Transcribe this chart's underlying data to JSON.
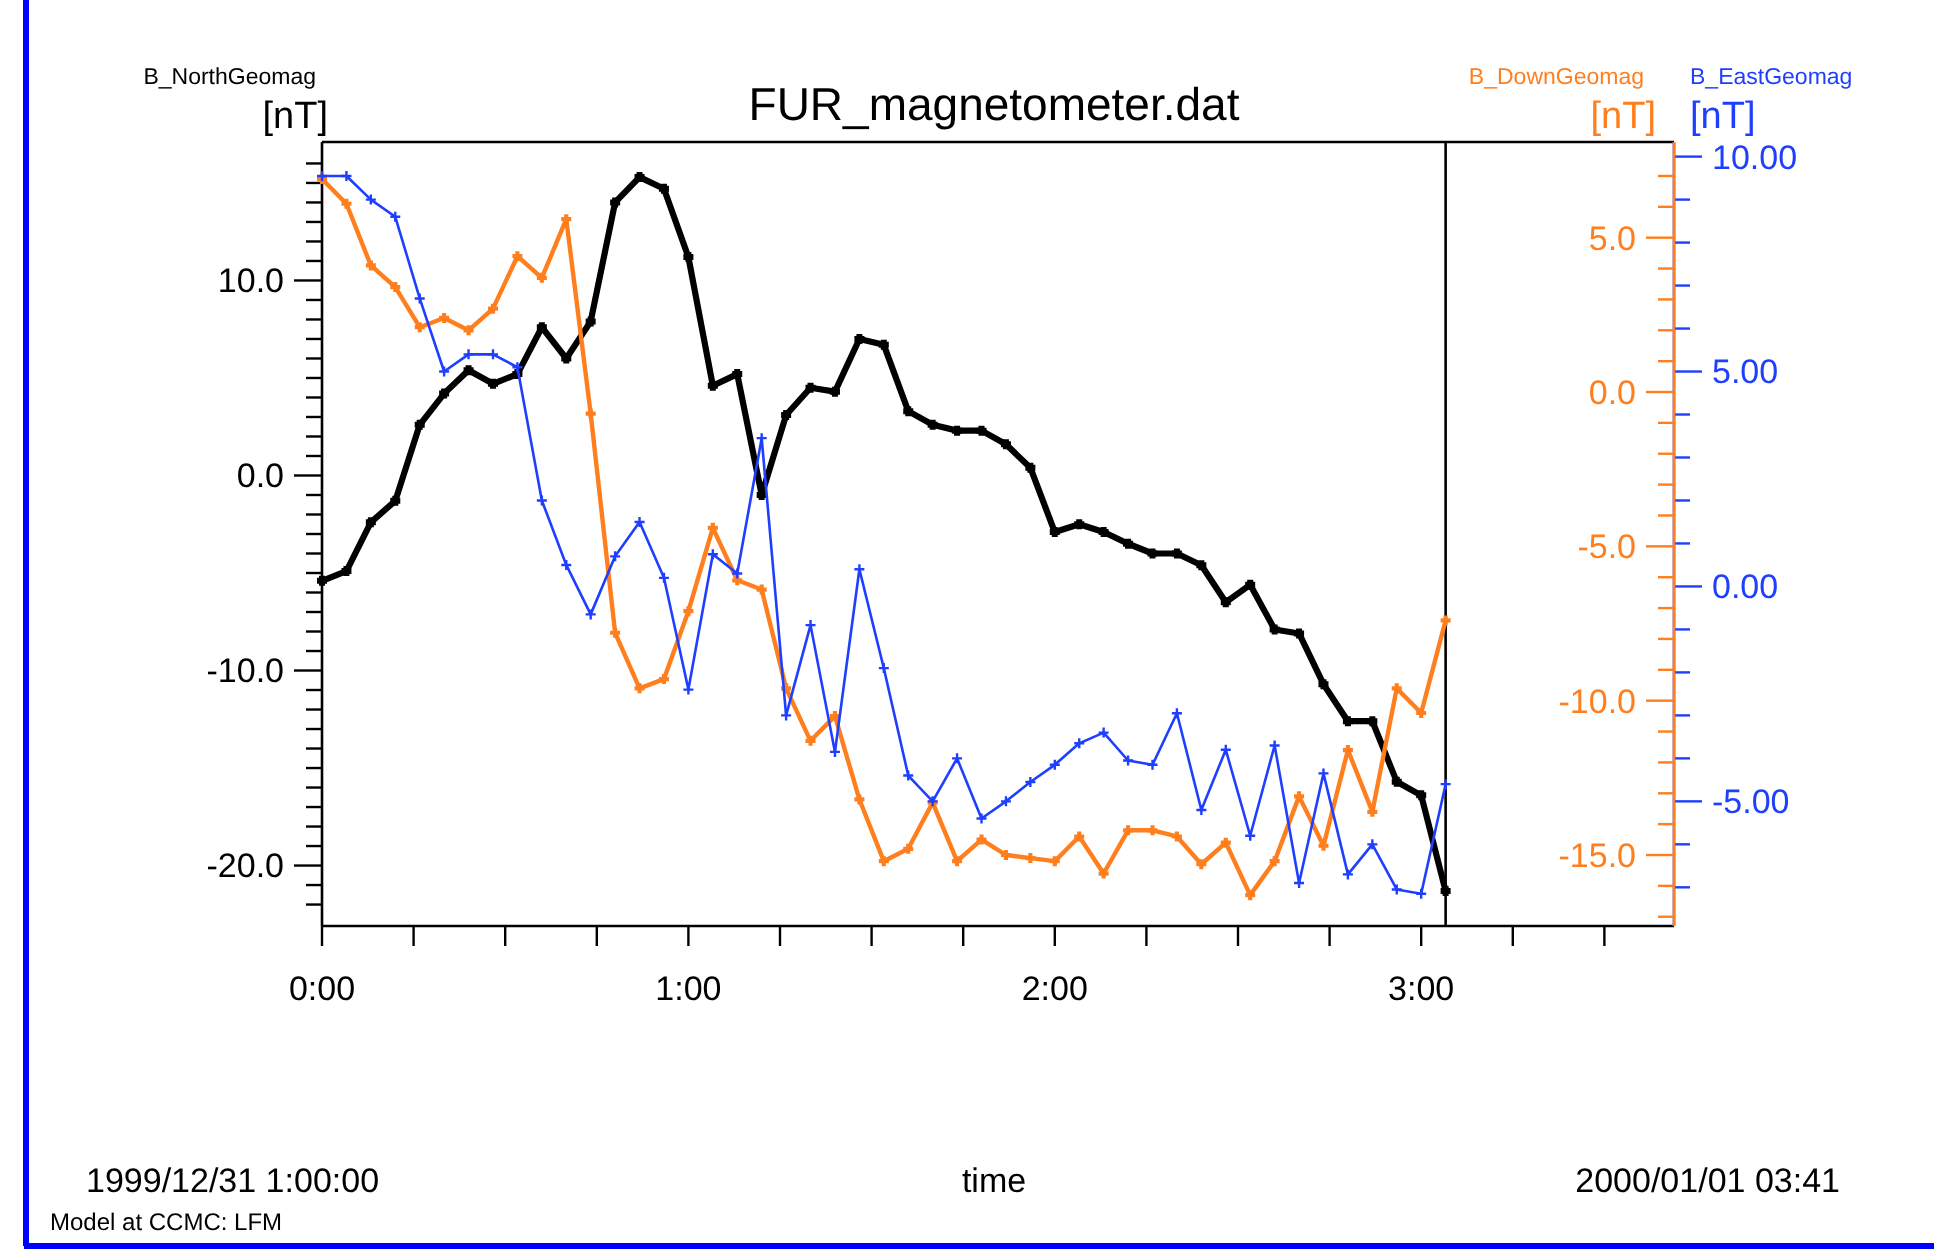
{
  "chart_data": {
    "type": "line",
    "title": "FUR_magnetometer.dat",
    "xlabel": "time",
    "ylabel": "B_NorthGeomag [nT]",
    "y2label": "B_DownGeomag [nT]",
    "y3label": "B_EastGeomag [nT]",
    "annotations": [
      "1999/12/31 1:00:00",
      "2000/01/01 03:41",
      "Model at CCMC: LFM"
    ],
    "marker": "cross",
    "line_style": "solid",
    "x": [
      0,
      0.0667,
      0.1333,
      0.2,
      0.2667,
      0.3333,
      0.4,
      0.4667,
      0.5333,
      0.6,
      0.6667,
      0.7333,
      0.8,
      0.8667,
      0.9333,
      1,
      1.0667,
      1.1333,
      1.2,
      1.2667,
      1.3333,
      1.4,
      1.4667,
      1.5333,
      1.6,
      1.6667,
      1.7333,
      1.8,
      1.8667,
      1.9333,
      2,
      2.0667,
      2.1333,
      2.2,
      2.2667,
      2.3333,
      2.4,
      2.4667,
      2.5333,
      2.6,
      2.6667,
      2.7333,
      2.8,
      2.8667,
      2.9333,
      3,
      3.0667
    ],
    "xlim": [
      0,
      3.69
    ],
    "xticks": [
      {
        "value": 0,
        "label": "0:00"
      },
      {
        "value": 0.25,
        "label": null
      },
      {
        "value": 0.5,
        "label": null
      },
      {
        "value": 0.75,
        "label": null
      },
      {
        "value": 1,
        "label": "1:00"
      },
      {
        "value": 1.25,
        "label": null
      },
      {
        "value": 1.5,
        "label": null
      },
      {
        "value": 1.75,
        "label": null
      },
      {
        "value": 2,
        "label": "2:00"
      },
      {
        "value": 2.25,
        "label": null
      },
      {
        "value": 2.5,
        "label": null
      },
      {
        "value": 2.75,
        "label": null
      },
      {
        "value": 3,
        "label": "3:00"
      },
      {
        "value": 3.25,
        "label": null
      },
      {
        "value": 3.5,
        "label": null
      }
    ],
    "ylim": [
      -23.1,
      17.1
    ],
    "yticks": [
      {
        "value": -22,
        "label": null
      },
      {
        "value": -21,
        "label": null
      },
      {
        "value": -20,
        "label": "-20.0"
      },
      {
        "value": -19,
        "label": null
      },
      {
        "value": -18,
        "label": null
      },
      {
        "value": -17,
        "label": null
      },
      {
        "value": -16,
        "label": null
      },
      {
        "value": -15,
        "label": null
      },
      {
        "value": -14,
        "label": null
      },
      {
        "value": -13,
        "label": null
      },
      {
        "value": -12,
        "label": null
      },
      {
        "value": -11,
        "label": null
      },
      {
        "value": -10,
        "label": "-10.0"
      },
      {
        "value": -9,
        "label": null
      },
      {
        "value": -8,
        "label": null
      },
      {
        "value": -7,
        "label": null
      },
      {
        "value": -6,
        "label": null
      },
      {
        "value": -5,
        "label": null
      },
      {
        "value": -4,
        "label": null
      },
      {
        "value": -3,
        "label": null
      },
      {
        "value": -2,
        "label": null
      },
      {
        "value": -1,
        "label": null
      },
      {
        "value": 0,
        "label": "0.0"
      },
      {
        "value": 1,
        "label": null
      },
      {
        "value": 2,
        "label": null
      },
      {
        "value": 3,
        "label": null
      },
      {
        "value": 4,
        "label": null
      },
      {
        "value": 5,
        "label": null
      },
      {
        "value": 6,
        "label": null
      },
      {
        "value": 7,
        "label": null
      },
      {
        "value": 8,
        "label": null
      },
      {
        "value": 9,
        "label": null
      },
      {
        "value": 10,
        "label": "10.0"
      },
      {
        "value": 11,
        "label": null
      },
      {
        "value": 12,
        "label": null
      },
      {
        "value": 13,
        "label": null
      },
      {
        "value": 14,
        "label": null
      },
      {
        "value": 15,
        "label": null
      },
      {
        "value": 16,
        "label": null
      }
    ],
    "y2lim": [
      -17.3,
      8.1
    ],
    "y2ticks": [
      {
        "value": -17,
        "label": null
      },
      {
        "value": -16,
        "label": null
      },
      {
        "value": -15,
        "label": "-15.0"
      },
      {
        "value": -14,
        "label": null
      },
      {
        "value": -13,
        "label": null
      },
      {
        "value": -12,
        "label": null
      },
      {
        "value": -11,
        "label": null
      },
      {
        "value": -10,
        "label": "-10.0"
      },
      {
        "value": -9,
        "label": null
      },
      {
        "value": -8,
        "label": null
      },
      {
        "value": -7,
        "label": null
      },
      {
        "value": -6,
        "label": null
      },
      {
        "value": -5,
        "label": "-5.0"
      },
      {
        "value": -4,
        "label": null
      },
      {
        "value": -3,
        "label": null
      },
      {
        "value": -2,
        "label": null
      },
      {
        "value": -1,
        "label": null
      },
      {
        "value": 0,
        "label": "0.0"
      },
      {
        "value": 1,
        "label": null
      },
      {
        "value": 2,
        "label": null
      },
      {
        "value": 3,
        "label": null
      },
      {
        "value": 4,
        "label": null
      },
      {
        "value": 5,
        "label": "5.0"
      },
      {
        "value": 6,
        "label": null
      },
      {
        "value": 7,
        "label": null
      }
    ],
    "y3lim": [
      -7.9,
      10.34
    ],
    "y3ticks": [
      {
        "value": -7,
        "label": null
      },
      {
        "value": -6,
        "label": null
      },
      {
        "value": -5,
        "label": "-5.00"
      },
      {
        "value": -4,
        "label": null
      },
      {
        "value": -3,
        "label": null
      },
      {
        "value": -2,
        "label": null
      },
      {
        "value": -1,
        "label": null
      },
      {
        "value": 0,
        "label": "0.00"
      },
      {
        "value": 1,
        "label": null
      },
      {
        "value": 2,
        "label": null
      },
      {
        "value": 3,
        "label": null
      },
      {
        "value": 4,
        "label": null
      },
      {
        "value": 5,
        "label": "5.00"
      },
      {
        "value": 6,
        "label": null
      },
      {
        "value": 7,
        "label": null
      },
      {
        "value": 8,
        "label": null
      },
      {
        "value": 9,
        "label": null
      },
      {
        "value": 10,
        "label": "10.00"
      }
    ],
    "ref_lines": [
      {
        "axis": "x",
        "value": 3.0667,
        "color": "#000000"
      }
    ],
    "series": [
      {
        "color": "#000000",
        "values": [
          -5.4,
          -4.9,
          -2.4,
          -1.3,
          2.6,
          4.2,
          5.4,
          4.7,
          5.2,
          7.6,
          6.0,
          7.9,
          14.0,
          15.3,
          14.7,
          11.2,
          4.6,
          5.2,
          -1.0,
          3.1,
          4.5,
          4.3,
          7.0,
          6.7,
          3.3,
          2.6,
          2.3,
          2.3,
          1.6,
          0.4,
          -2.9,
          -2.5,
          -2.9,
          -3.5,
          -4.0,
          -4.0,
          -4.6,
          -6.5,
          -5.6,
          -7.9,
          -8.1,
          -10.7,
          -12.6,
          -12.6,
          -15.7,
          -16.4,
          -21.3
        ]
      },
      {
        "color": "#ff7f1f",
        "axis": "y2",
        "values": [
          6.9,
          6.1,
          4.1,
          3.4,
          2.1,
          2.4,
          2.0,
          2.7,
          4.4,
          3.7,
          5.6,
          -0.7,
          -7.8,
          -9.6,
          -9.3,
          -7.1,
          -4.4,
          -6.1,
          -6.4,
          -9.6,
          -11.3,
          -10.5,
          -13.2,
          -15.2,
          -14.8,
          -13.3,
          -15.2,
          -14.5,
          -15.0,
          -15.1,
          -15.2,
          -14.4,
          -15.6,
          -14.2,
          -14.2,
          -14.4,
          -15.3,
          -14.6,
          -16.3,
          -15.2,
          -13.1,
          -14.7,
          -11.6,
          -13.6,
          -9.6,
          -10.4,
          -7.4
        ]
      },
      {
        "color": "#1f3fff",
        "axis": "y3",
        "values": [
          9.55,
          9.55,
          9.0,
          8.6,
          6.7,
          5.0,
          5.4,
          5.4,
          5.1,
          2.0,
          0.5,
          -0.65,
          0.7,
          1.5,
          0.2,
          -2.4,
          0.75,
          0.3,
          3.45,
          -3.0,
          -0.9,
          -3.85,
          0.4,
          -1.9,
          -4.4,
          -5.0,
          -4.0,
          -5.4,
          -5.0,
          -4.55,
          -4.15,
          -3.65,
          -3.4,
          -4.05,
          -4.15,
          -2.95,
          -5.2,
          -3.8,
          -5.8,
          -3.7,
          -6.9,
          -4.35,
          -6.7,
          -6.0,
          -7.05,
          -7.15,
          -4.6
        ]
      }
    ]
  }
}
